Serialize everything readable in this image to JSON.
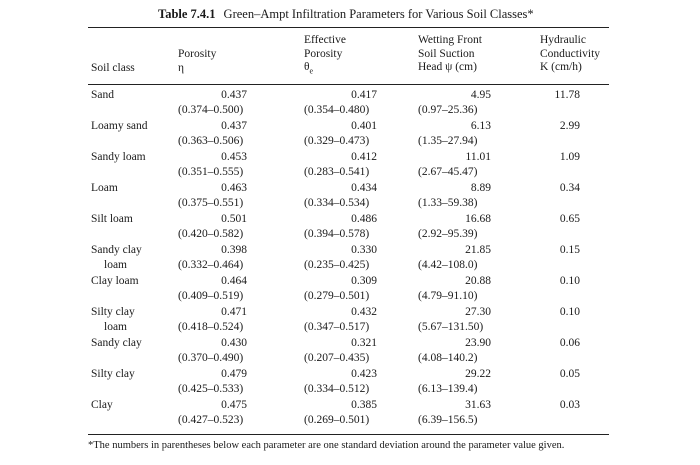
{
  "table": {
    "number": "Table 7.4.1",
    "title": "Green–Ampt Infiltration Parameters for Various Soil Classes*",
    "headers": {
      "soil_class": "Soil class",
      "porosity": [
        "Porosity",
        "η"
      ],
      "effective_porosity": [
        "Effective",
        "Porosity",
        "θe"
      ],
      "wetting_front": [
        "Wetting Front",
        "Soil Suction",
        "Head ψ (cm)"
      ],
      "hydraulic": [
        "Hydraulic",
        "Conductivity",
        "K (cm/h)"
      ]
    },
    "rows": [
      {
        "soil": [
          "Sand"
        ],
        "porosity": "0.437",
        "porosity_range": "(0.374–0.500)",
        "eff": "0.417",
        "eff_range": "(0.354–0.480)",
        "suction": "4.95",
        "suction_range": "(0.97–25.36)",
        "k": "11.78"
      },
      {
        "soil": [
          "Loamy sand"
        ],
        "porosity": "0.437",
        "porosity_range": "(0.363–0.506)",
        "eff": "0.401",
        "eff_range": "(0.329–0.473)",
        "suction": "6.13",
        "suction_range": "(1.35–27.94)",
        "k": "2.99"
      },
      {
        "soil": [
          "Sandy loam"
        ],
        "porosity": "0.453",
        "porosity_range": "(0.351–0.555)",
        "eff": "0.412",
        "eff_range": "(0.283–0.541)",
        "suction": "11.01",
        "suction_range": "(2.67–45.47)",
        "k": "1.09"
      },
      {
        "soil": [
          "Loam"
        ],
        "porosity": "0.463",
        "porosity_range": "(0.375–0.551)",
        "eff": "0.434",
        "eff_range": "(0.334–0.534)",
        "suction": "8.89",
        "suction_range": "(1.33–59.38)",
        "k": "0.34"
      },
      {
        "soil": [
          "Silt loam"
        ],
        "porosity": "0.501",
        "porosity_range": "(0.420–0.582)",
        "eff": "0.486",
        "eff_range": "(0.394–0.578)",
        "suction": "16.68",
        "suction_range": "(2.92–95.39)",
        "k": "0.65"
      },
      {
        "soil": [
          "Sandy clay",
          "loam"
        ],
        "porosity": "0.398",
        "porosity_range": "(0.332–0.464)",
        "eff": "0.330",
        "eff_range": "(0.235–0.425)",
        "suction": "21.85",
        "suction_range": "(4.42–108.0)",
        "k": "0.15"
      },
      {
        "soil": [
          "Clay loam"
        ],
        "porosity": "0.464",
        "porosity_range": "(0.409–0.519)",
        "eff": "0.309",
        "eff_range": "(0.279–0.501)",
        "suction": "20.88",
        "suction_range": "(4.79–91.10)",
        "k": "0.10"
      },
      {
        "soil": [
          "Silty clay",
          "loam"
        ],
        "porosity": "0.471",
        "porosity_range": "(0.418–0.524)",
        "eff": "0.432",
        "eff_range": "(0.347–0.517)",
        "suction": "27.30",
        "suction_range": "(5.67–131.50)",
        "k": "0.10"
      },
      {
        "soil": [
          "Sandy clay"
        ],
        "porosity": "0.430",
        "porosity_range": "(0.370–0.490)",
        "eff": "0.321",
        "eff_range": "(0.207–0.435)",
        "suction": "23.90",
        "suction_range": "(4.08–140.2)",
        "k": "0.06"
      },
      {
        "soil": [
          "Silty clay"
        ],
        "porosity": "0.479",
        "porosity_range": "(0.425–0.533)",
        "eff": "0.423",
        "eff_range": "(0.334–0.512)",
        "suction": "29.22",
        "suction_range": "(6.13–139.4)",
        "k": "0.05"
      },
      {
        "soil": [
          "Clay"
        ],
        "porosity": "0.475",
        "porosity_range": "(0.427–0.523)",
        "eff": "0.385",
        "eff_range": "(0.269–0.501)",
        "suction": "31.63",
        "suction_range": "(6.39–156.5)",
        "k": "0.03"
      }
    ],
    "footnote": "*The numbers in parentheses below each parameter are one standard deviation around the parameter value given."
  }
}
